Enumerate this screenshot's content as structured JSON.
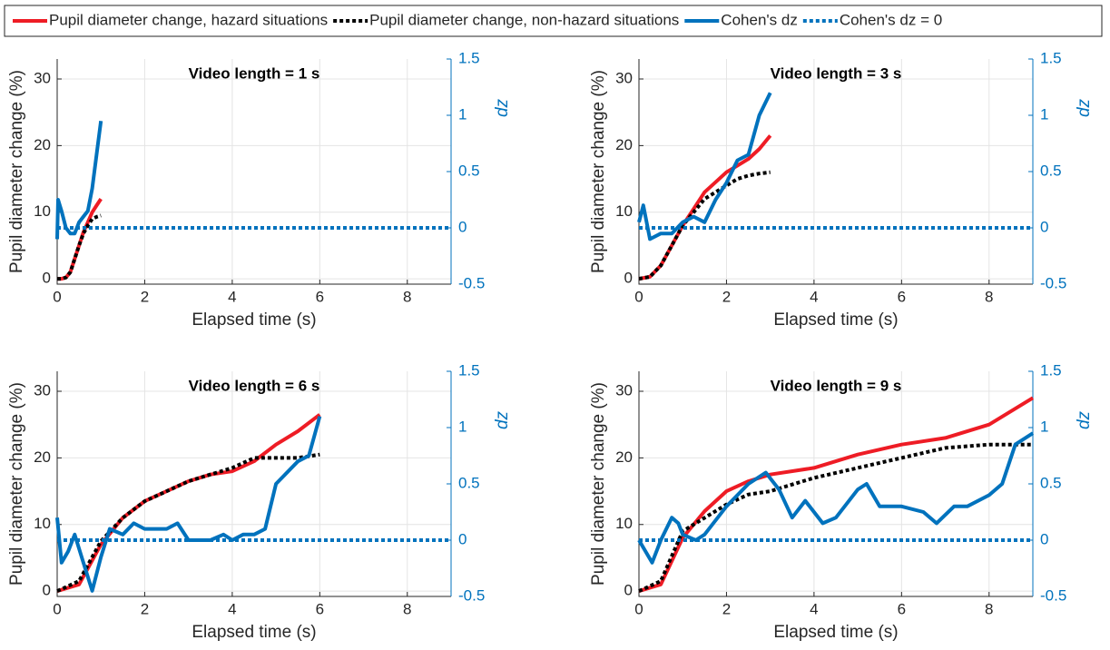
{
  "chart_data": [
    {
      "type": "line",
      "title": "Video length = 1 s",
      "xlabel": "Elapsed time (s)",
      "ylabel": "Pupil diameter change (%)",
      "y2label": "dz",
      "xlim": [
        0,
        9
      ],
      "xticks": [
        0,
        2,
        4,
        6,
        8
      ],
      "ylim": [
        -0.8,
        33
      ],
      "yticks": [
        0,
        10,
        20,
        30
      ],
      "y2lim": [
        -0.5,
        1.5
      ],
      "y2ticks": [
        -0.5,
        0,
        0.5,
        1,
        1.5
      ],
      "grid": true,
      "series": [
        {
          "name": "Pupil diameter change, hazard situations",
          "color": "#ee1c25",
          "style": "solid",
          "axis": "y",
          "x": [
            0,
            0.1,
            0.2,
            0.3,
            0.4,
            0.5,
            0.6,
            0.7,
            0.8,
            0.9,
            1.0
          ],
          "values": [
            0,
            0,
            0.2,
            1,
            3,
            5,
            7,
            8.5,
            10,
            11,
            12
          ]
        },
        {
          "name": "Pupil diameter change, non-hazard situations",
          "color": "#000000",
          "style": "dotted",
          "axis": "y",
          "x": [
            0,
            0.1,
            0.2,
            0.3,
            0.4,
            0.5,
            0.6,
            0.7,
            0.8,
            0.9,
            1.0
          ],
          "values": [
            0,
            0,
            0.2,
            1,
            3,
            5,
            6.8,
            8,
            9,
            9.3,
            9.5
          ]
        },
        {
          "name": "Cohen's dz",
          "color": "#0072bd",
          "style": "solid",
          "axis": "y2",
          "x": [
            0,
            0.02,
            0.1,
            0.2,
            0.3,
            0.4,
            0.5,
            0.6,
            0.7,
            0.8,
            0.9,
            1.0
          ],
          "values": [
            -0.1,
            0.25,
            0.15,
            0,
            -0.05,
            -0.05,
            0.05,
            0.1,
            0.15,
            0.35,
            0.65,
            0.95
          ]
        },
        {
          "name": "Cohen's dz = 0",
          "color": "#0072bd",
          "style": "dotted",
          "axis": "y2",
          "x": [
            0,
            9
          ],
          "values": [
            0,
            0
          ]
        }
      ]
    },
    {
      "type": "line",
      "title": "Video length = 3 s",
      "xlabel": "Elapsed time (s)",
      "ylabel": "Pupil diameter change (%)",
      "y2label": "dz",
      "xlim": [
        0,
        9
      ],
      "xticks": [
        0,
        2,
        4,
        6,
        8
      ],
      "ylim": [
        -0.8,
        33
      ],
      "yticks": [
        0,
        10,
        20,
        30
      ],
      "y2lim": [
        -0.5,
        1.5
      ],
      "y2ticks": [
        -0.5,
        0,
        0.5,
        1,
        1.5
      ],
      "grid": true,
      "series": [
        {
          "color": "#ee1c25",
          "style": "solid",
          "axis": "y",
          "x": [
            0,
            0.25,
            0.5,
            0.75,
            1,
            1.25,
            1.5,
            1.75,
            2,
            2.25,
            2.5,
            2.75,
            3
          ],
          "values": [
            0,
            0.3,
            2,
            5,
            8,
            10.5,
            13,
            14.5,
            16,
            17,
            18,
            19.5,
            21.5
          ]
        },
        {
          "color": "#000000",
          "style": "dotted",
          "axis": "y",
          "x": [
            0,
            0.25,
            0.5,
            0.75,
            1,
            1.25,
            1.5,
            1.75,
            2,
            2.25,
            2.5,
            2.75,
            3
          ],
          "values": [
            0,
            0.3,
            2,
            5,
            8,
            10,
            12,
            13,
            14,
            15,
            15.5,
            15.8,
            16
          ]
        },
        {
          "color": "#0072bd",
          "style": "solid",
          "axis": "y2",
          "x": [
            0,
            0.1,
            0.25,
            0.5,
            0.75,
            1,
            1.25,
            1.5,
            1.75,
            2,
            2.25,
            2.5,
            2.75,
            3
          ],
          "values": [
            0.05,
            0.2,
            -0.1,
            -0.05,
            -0.05,
            0.05,
            0.1,
            0.05,
            0.25,
            0.4,
            0.6,
            0.65,
            1.0,
            1.2
          ]
        },
        {
          "color": "#0072bd",
          "style": "dotted",
          "axis": "y2",
          "x": [
            0,
            9
          ],
          "values": [
            0,
            0
          ]
        }
      ]
    },
    {
      "type": "line",
      "title": "Video length = 6 s",
      "xlabel": "Elapsed time (s)",
      "ylabel": "Pupil diameter change (%)",
      "y2label": "dz",
      "xlim": [
        0,
        9
      ],
      "xticks": [
        0,
        2,
        4,
        6,
        8
      ],
      "ylim": [
        -0.8,
        33
      ],
      "yticks": [
        0,
        10,
        20,
        30
      ],
      "y2lim": [
        -0.5,
        1.5
      ],
      "y2ticks": [
        -0.5,
        0,
        0.5,
        1,
        1.5
      ],
      "grid": true,
      "series": [
        {
          "color": "#ee1c25",
          "style": "solid",
          "axis": "y",
          "x": [
            0,
            0.5,
            1,
            1.5,
            2,
            2.5,
            3,
            3.5,
            4,
            4.5,
            5,
            5.5,
            6
          ],
          "values": [
            0,
            1,
            7,
            11,
            13.5,
            15,
            16.5,
            17.5,
            18,
            19.5,
            22,
            24,
            26.5
          ]
        },
        {
          "color": "#000000",
          "style": "dotted",
          "axis": "y",
          "x": [
            0,
            0.5,
            1,
            1.5,
            2,
            2.5,
            3,
            3.5,
            4,
            4.5,
            5,
            5.5,
            6
          ],
          "values": [
            0,
            1.5,
            7.5,
            11,
            13.5,
            15,
            16.5,
            17.5,
            18.5,
            20,
            20,
            20,
            20.5
          ]
        },
        {
          "color": "#0072bd",
          "style": "solid",
          "axis": "y2",
          "x": [
            0,
            0.1,
            0.25,
            0.4,
            0.6,
            0.8,
            1,
            1.2,
            1.5,
            1.75,
            2,
            2.5,
            2.75,
            3,
            3.5,
            3.8,
            4,
            4.25,
            4.5,
            4.75,
            5,
            5.5,
            5.75,
            6
          ],
          "values": [
            0.2,
            -0.2,
            -0.1,
            0.05,
            -0.2,
            -0.45,
            -0.15,
            0.1,
            0.05,
            0.15,
            0.1,
            0.1,
            0.15,
            0,
            0,
            0.05,
            0,
            0.05,
            0.05,
            0.1,
            0.5,
            0.7,
            0.75,
            1.1
          ]
        },
        {
          "color": "#0072bd",
          "style": "dotted",
          "axis": "y2",
          "x": [
            0,
            9
          ],
          "values": [
            0,
            0
          ]
        }
      ]
    },
    {
      "type": "line",
      "title": "Video length = 9 s",
      "xlabel": "Elapsed time (s)",
      "ylabel": "Pupil diameter change (%)",
      "y2label": "dz",
      "xlim": [
        0,
        9
      ],
      "xticks": [
        0,
        2,
        4,
        6,
        8
      ],
      "ylim": [
        -0.8,
        33
      ],
      "yticks": [
        0,
        10,
        20,
        30
      ],
      "y2lim": [
        -0.5,
        1.5
      ],
      "y2ticks": [
        -0.5,
        0,
        0.5,
        1,
        1.5
      ],
      "grid": true,
      "series": [
        {
          "color": "#ee1c25",
          "style": "solid",
          "axis": "y",
          "x": [
            0,
            0.5,
            1,
            1.5,
            2,
            2.5,
            3,
            4,
            5,
            6,
            7,
            8,
            9
          ],
          "values": [
            0,
            1,
            8,
            12,
            15,
            16.5,
            17.5,
            18.5,
            20.5,
            22,
            23,
            25,
            29
          ]
        },
        {
          "color": "#000000",
          "style": "dotted",
          "axis": "y",
          "x": [
            0,
            0.5,
            1,
            1.5,
            2,
            2.5,
            3,
            3.5,
            4,
            5,
            6,
            7,
            8,
            9
          ],
          "values": [
            0,
            1.5,
            9,
            11,
            13,
            14.5,
            15,
            16,
            17,
            18.5,
            20,
            21.5,
            22,
            22
          ]
        },
        {
          "color": "#0072bd",
          "style": "solid",
          "axis": "y2",
          "x": [
            0,
            0.3,
            0.5,
            0.75,
            0.9,
            1,
            1.3,
            1.5,
            2,
            2.5,
            2.9,
            3.2,
            3.5,
            3.8,
            4.2,
            4.5,
            5,
            5.2,
            5.5,
            6,
            6.5,
            6.8,
            7.2,
            7.5,
            8,
            8.3,
            8.6,
            9
          ],
          "values": [
            0,
            -0.2,
            0,
            0.2,
            0.15,
            0.05,
            0,
            0.05,
            0.3,
            0.5,
            0.6,
            0.45,
            0.2,
            0.35,
            0.15,
            0.2,
            0.45,
            0.5,
            0.3,
            0.3,
            0.25,
            0.15,
            0.3,
            0.3,
            0.4,
            0.5,
            0.85,
            0.95
          ]
        },
        {
          "color": "#0072bd",
          "style": "dotted",
          "axis": "y2",
          "x": [
            0,
            9
          ],
          "values": [
            0,
            0
          ]
        }
      ]
    }
  ]
}
